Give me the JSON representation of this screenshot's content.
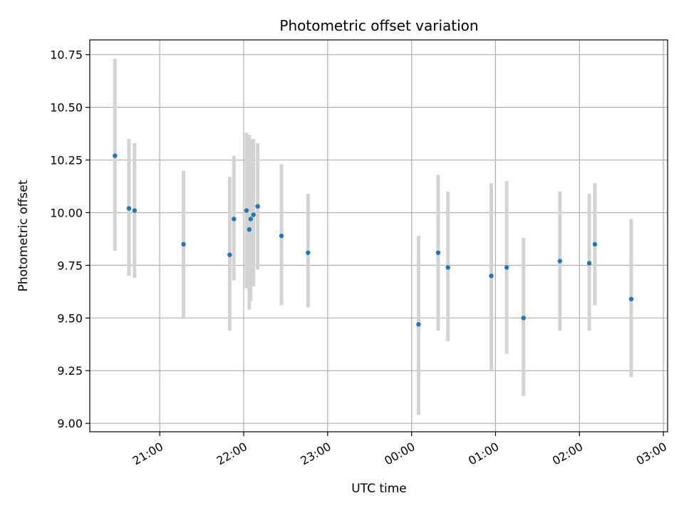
{
  "chart_data": {
    "type": "scatter",
    "title": "Photometric offset variation",
    "xlabel": "UTC time",
    "ylabel": "Photometric offset",
    "grid": true,
    "legend": "none",
    "x_unit": "UTC time",
    "xlim": [
      "20:10",
      "03:03"
    ],
    "ylim": [
      8.96,
      10.82
    ],
    "x_ticks": [
      "21:00",
      "22:00",
      "23:00",
      "00:00",
      "01:00",
      "02:00",
      "03:00"
    ],
    "y_ticks": [
      "9.00",
      "9.25",
      "9.50",
      "9.75",
      "10.00",
      "10.25",
      "10.50",
      "10.75"
    ],
    "colors": {
      "point": "#1f77b4",
      "error_bar": "#d3d3d3",
      "grid": "#b0b0b0"
    },
    "series": [
      {
        "x": [
          "20:28",
          "20:38",
          "20:42",
          "21:17",
          "21:50",
          "21:53",
          "22:02",
          "22:04",
          "22:05",
          "22:07",
          "22:10",
          "22:27",
          "22:46",
          "00:05",
          "00:19",
          "00:26",
          "00:57",
          "01:08",
          "01:20",
          "01:46",
          "02:07",
          "02:11",
          "02:37"
        ],
        "y": [
          10.27,
          10.02,
          10.01,
          9.85,
          9.8,
          9.97,
          10.01,
          9.92,
          9.97,
          9.99,
          10.03,
          9.89,
          9.81,
          9.47,
          9.81,
          9.74,
          9.7,
          9.74,
          9.5,
          9.77,
          9.76,
          9.85,
          9.59
        ],
        "y_low": [
          9.82,
          9.7,
          9.69,
          9.5,
          9.44,
          9.68,
          9.64,
          9.54,
          9.58,
          9.65,
          9.73,
          9.56,
          9.55,
          9.04,
          9.44,
          9.39,
          9.25,
          9.33,
          9.13,
          9.44,
          9.44,
          9.56,
          9.22
        ],
        "y_high": [
          10.73,
          10.35,
          10.33,
          10.2,
          10.17,
          10.27,
          10.38,
          10.37,
          10.35,
          10.35,
          10.33,
          10.23,
          10.09,
          9.89,
          10.18,
          10.1,
          10.14,
          10.15,
          9.88,
          10.1,
          10.09,
          10.14,
          9.97
        ]
      }
    ]
  }
}
